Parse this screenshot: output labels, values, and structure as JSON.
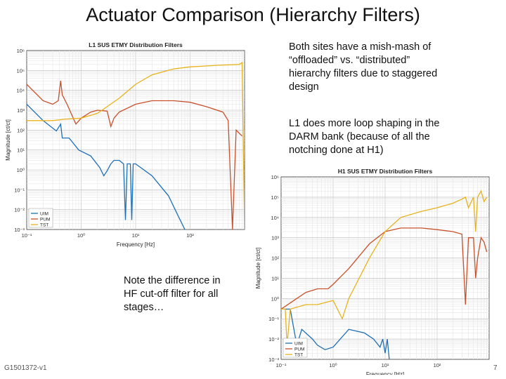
{
  "slide": {
    "title": "Actuator Comparison (Hierarchy Filters)",
    "note_top": [
      "Both sites have a mish-mash of",
      "“offloaded” vs. “distributed”",
      "hierarchy filters due to staggered",
      "design"
    ],
    "note_mid": [
      "L1 does more loop shaping in the",
      "DARM bank (because of all the",
      "notching done at H1)"
    ],
    "note_bottom": [
      "Note the difference in",
      "HF cut-off filter for all",
      "stages…"
    ],
    "footer_id": "G1501372-v1",
    "page_number": "7"
  },
  "colors": {
    "UIM": "#1f6fb5",
    "PUM": "#c8502a",
    "TST": "#e8b21c"
  },
  "chart_data": [
    {
      "type": "line",
      "title": "L1 SUS ETMY Distribution Filters",
      "xlabel": "Frequency [Hz]",
      "ylabel": "Magnitude [ct/ct]",
      "xscale": "log",
      "yscale": "log",
      "xlim": [
        0.1,
        1000
      ],
      "ylim": [
        0.001,
        1000000
      ],
      "xticks": [
        "10⁻¹",
        "10⁰",
        "10¹",
        "10²"
      ],
      "yticks": [
        "10⁶",
        "10⁵",
        "10⁴",
        "10³",
        "10²",
        "10¹",
        "10⁰",
        "10⁻¹",
        "10⁻²",
        "10⁻³"
      ],
      "grid": true,
      "legend": "bottom-left",
      "series": [
        {
          "name": "UIM",
          "points": [
            [
              0.1,
              2000
            ],
            [
              0.2,
              300
            ],
            [
              0.35,
              90
            ],
            [
              0.42,
              200
            ],
            [
              0.45,
              40
            ],
            [
              0.6,
              40
            ],
            [
              0.9,
              10
            ],
            [
              1.5,
              5
            ],
            [
              2.2,
              1.3
            ],
            [
              2.6,
              0.5
            ],
            [
              3,
              0.9
            ],
            [
              3.5,
              2
            ],
            [
              4,
              3
            ],
            [
              5,
              3
            ],
            [
              6,
              2
            ],
            [
              6.5,
              0.003
            ],
            [
              7,
              2
            ],
            [
              8,
              2
            ],
            [
              8.5,
              0.003
            ],
            [
              9,
              2
            ],
            [
              10,
              2
            ],
            [
              20,
              0.5
            ],
            [
              40,
              0.05
            ],
            [
              60,
              0.005
            ],
            [
              80,
              0.001
            ]
          ]
        },
        {
          "name": "PUM",
          "points": [
            [
              0.1,
              20000
            ],
            [
              0.2,
              3000
            ],
            [
              0.3,
              2000
            ],
            [
              0.38,
              3000
            ],
            [
              0.42,
              30000
            ],
            [
              0.45,
              6000
            ],
            [
              0.55,
              2000
            ],
            [
              0.8,
              200
            ],
            [
              1,
              400
            ],
            [
              1.5,
              800
            ],
            [
              2,
              1000
            ],
            [
              3,
              900
            ],
            [
              3.5,
              150
            ],
            [
              4,
              400
            ],
            [
              5,
              800
            ],
            [
              10,
              2000
            ],
            [
              20,
              3000
            ],
            [
              50,
              3000
            ],
            [
              100,
              2500
            ],
            [
              200,
              1500
            ],
            [
              400,
              800
            ],
            [
              500,
              300
            ],
            [
              600,
              0.001
            ],
            [
              700,
              100
            ],
            [
              900,
              50
            ]
          ]
        },
        {
          "name": "TST",
          "points": [
            [
              0.1,
              300
            ],
            [
              0.3,
              300
            ],
            [
              0.5,
              350
            ],
            [
              1,
              400
            ],
            [
              2,
              700
            ],
            [
              5,
              4000
            ],
            [
              10,
              20000
            ],
            [
              20,
              60000
            ],
            [
              50,
              120000
            ],
            [
              100,
              150000
            ],
            [
              300,
              180000
            ],
            [
              800,
              200000
            ],
            [
              900,
              250000
            ],
            [
              1000,
              0.001
            ]
          ]
        }
      ]
    },
    {
      "type": "line",
      "title": "H1 SUS ETMY Distribution Filters",
      "xlabel": "Frequency [Hz]",
      "ylabel": "Magnitude [ct/ct]",
      "xscale": "log",
      "yscale": "log",
      "xlim": [
        0.1,
        1000
      ],
      "ylim": [
        0.001,
        1000000
      ],
      "xticks": [
        "10⁻¹",
        "10⁰",
        "10¹",
        "10²"
      ],
      "yticks": [
        "10⁶",
        "10⁵",
        "10⁴",
        "10³",
        "10²",
        "10¹",
        "10⁰",
        "10⁻¹",
        "10⁻²",
        "10⁻³"
      ],
      "grid": true,
      "legend": "bottom-left",
      "series": [
        {
          "name": "UIM",
          "points": [
            [
              0.1,
              0.3
            ],
            [
              0.15,
              0.3
            ],
            [
              0.2,
              0.005
            ],
            [
              0.25,
              0.03
            ],
            [
              0.4,
              0.01
            ],
            [
              0.5,
              0.005
            ],
            [
              0.7,
              0.003
            ],
            [
              1,
              0.004
            ],
            [
              2,
              0.03
            ],
            [
              4,
              0.02
            ],
            [
              6,
              0.01
            ],
            [
              8,
              0.004
            ],
            [
              9,
              0.01
            ],
            [
              10,
              0.002
            ],
            [
              11,
              0.01
            ],
            [
              12,
              0.001
            ]
          ]
        },
        {
          "name": "PUM",
          "points": [
            [
              0.1,
              0.3
            ],
            [
              0.2,
              1
            ],
            [
              0.3,
              2
            ],
            [
              0.5,
              3
            ],
            [
              0.8,
              3
            ],
            [
              1,
              5
            ],
            [
              2,
              30
            ],
            [
              5,
              500
            ],
            [
              10,
              2000
            ],
            [
              20,
              3000
            ],
            [
              50,
              3000
            ],
            [
              100,
              2500
            ],
            [
              200,
              2000
            ],
            [
              300,
              1500
            ],
            [
              350,
              0.5
            ],
            [
              400,
              1000
            ],
            [
              500,
              1000
            ],
            [
              550,
              10
            ],
            [
              600,
              100
            ],
            [
              700,
              1000
            ],
            [
              800,
              600
            ],
            [
              900,
              200
            ]
          ]
        },
        {
          "name": "TST",
          "points": [
            [
              0.1,
              0.3
            ],
            [
              0.12,
              0.3
            ],
            [
              0.13,
              0.005
            ],
            [
              0.15,
              0.3
            ],
            [
              0.3,
              0.5
            ],
            [
              0.5,
              0.5
            ],
            [
              1,
              0.8
            ],
            [
              1.5,
              0.1
            ],
            [
              2,
              1
            ],
            [
              5,
              100
            ],
            [
              10,
              2000
            ],
            [
              20,
              10000
            ],
            [
              50,
              20000
            ],
            [
              100,
              30000
            ],
            [
              200,
              50000
            ],
            [
              300,
              80000
            ],
            [
              350,
              100000
            ],
            [
              400,
              30000
            ],
            [
              500,
              100000
            ],
            [
              550,
              2000
            ],
            [
              600,
              100000
            ],
            [
              700,
              200000
            ],
            [
              800,
              60000
            ],
            [
              900,
              100000
            ]
          ]
        }
      ]
    }
  ]
}
